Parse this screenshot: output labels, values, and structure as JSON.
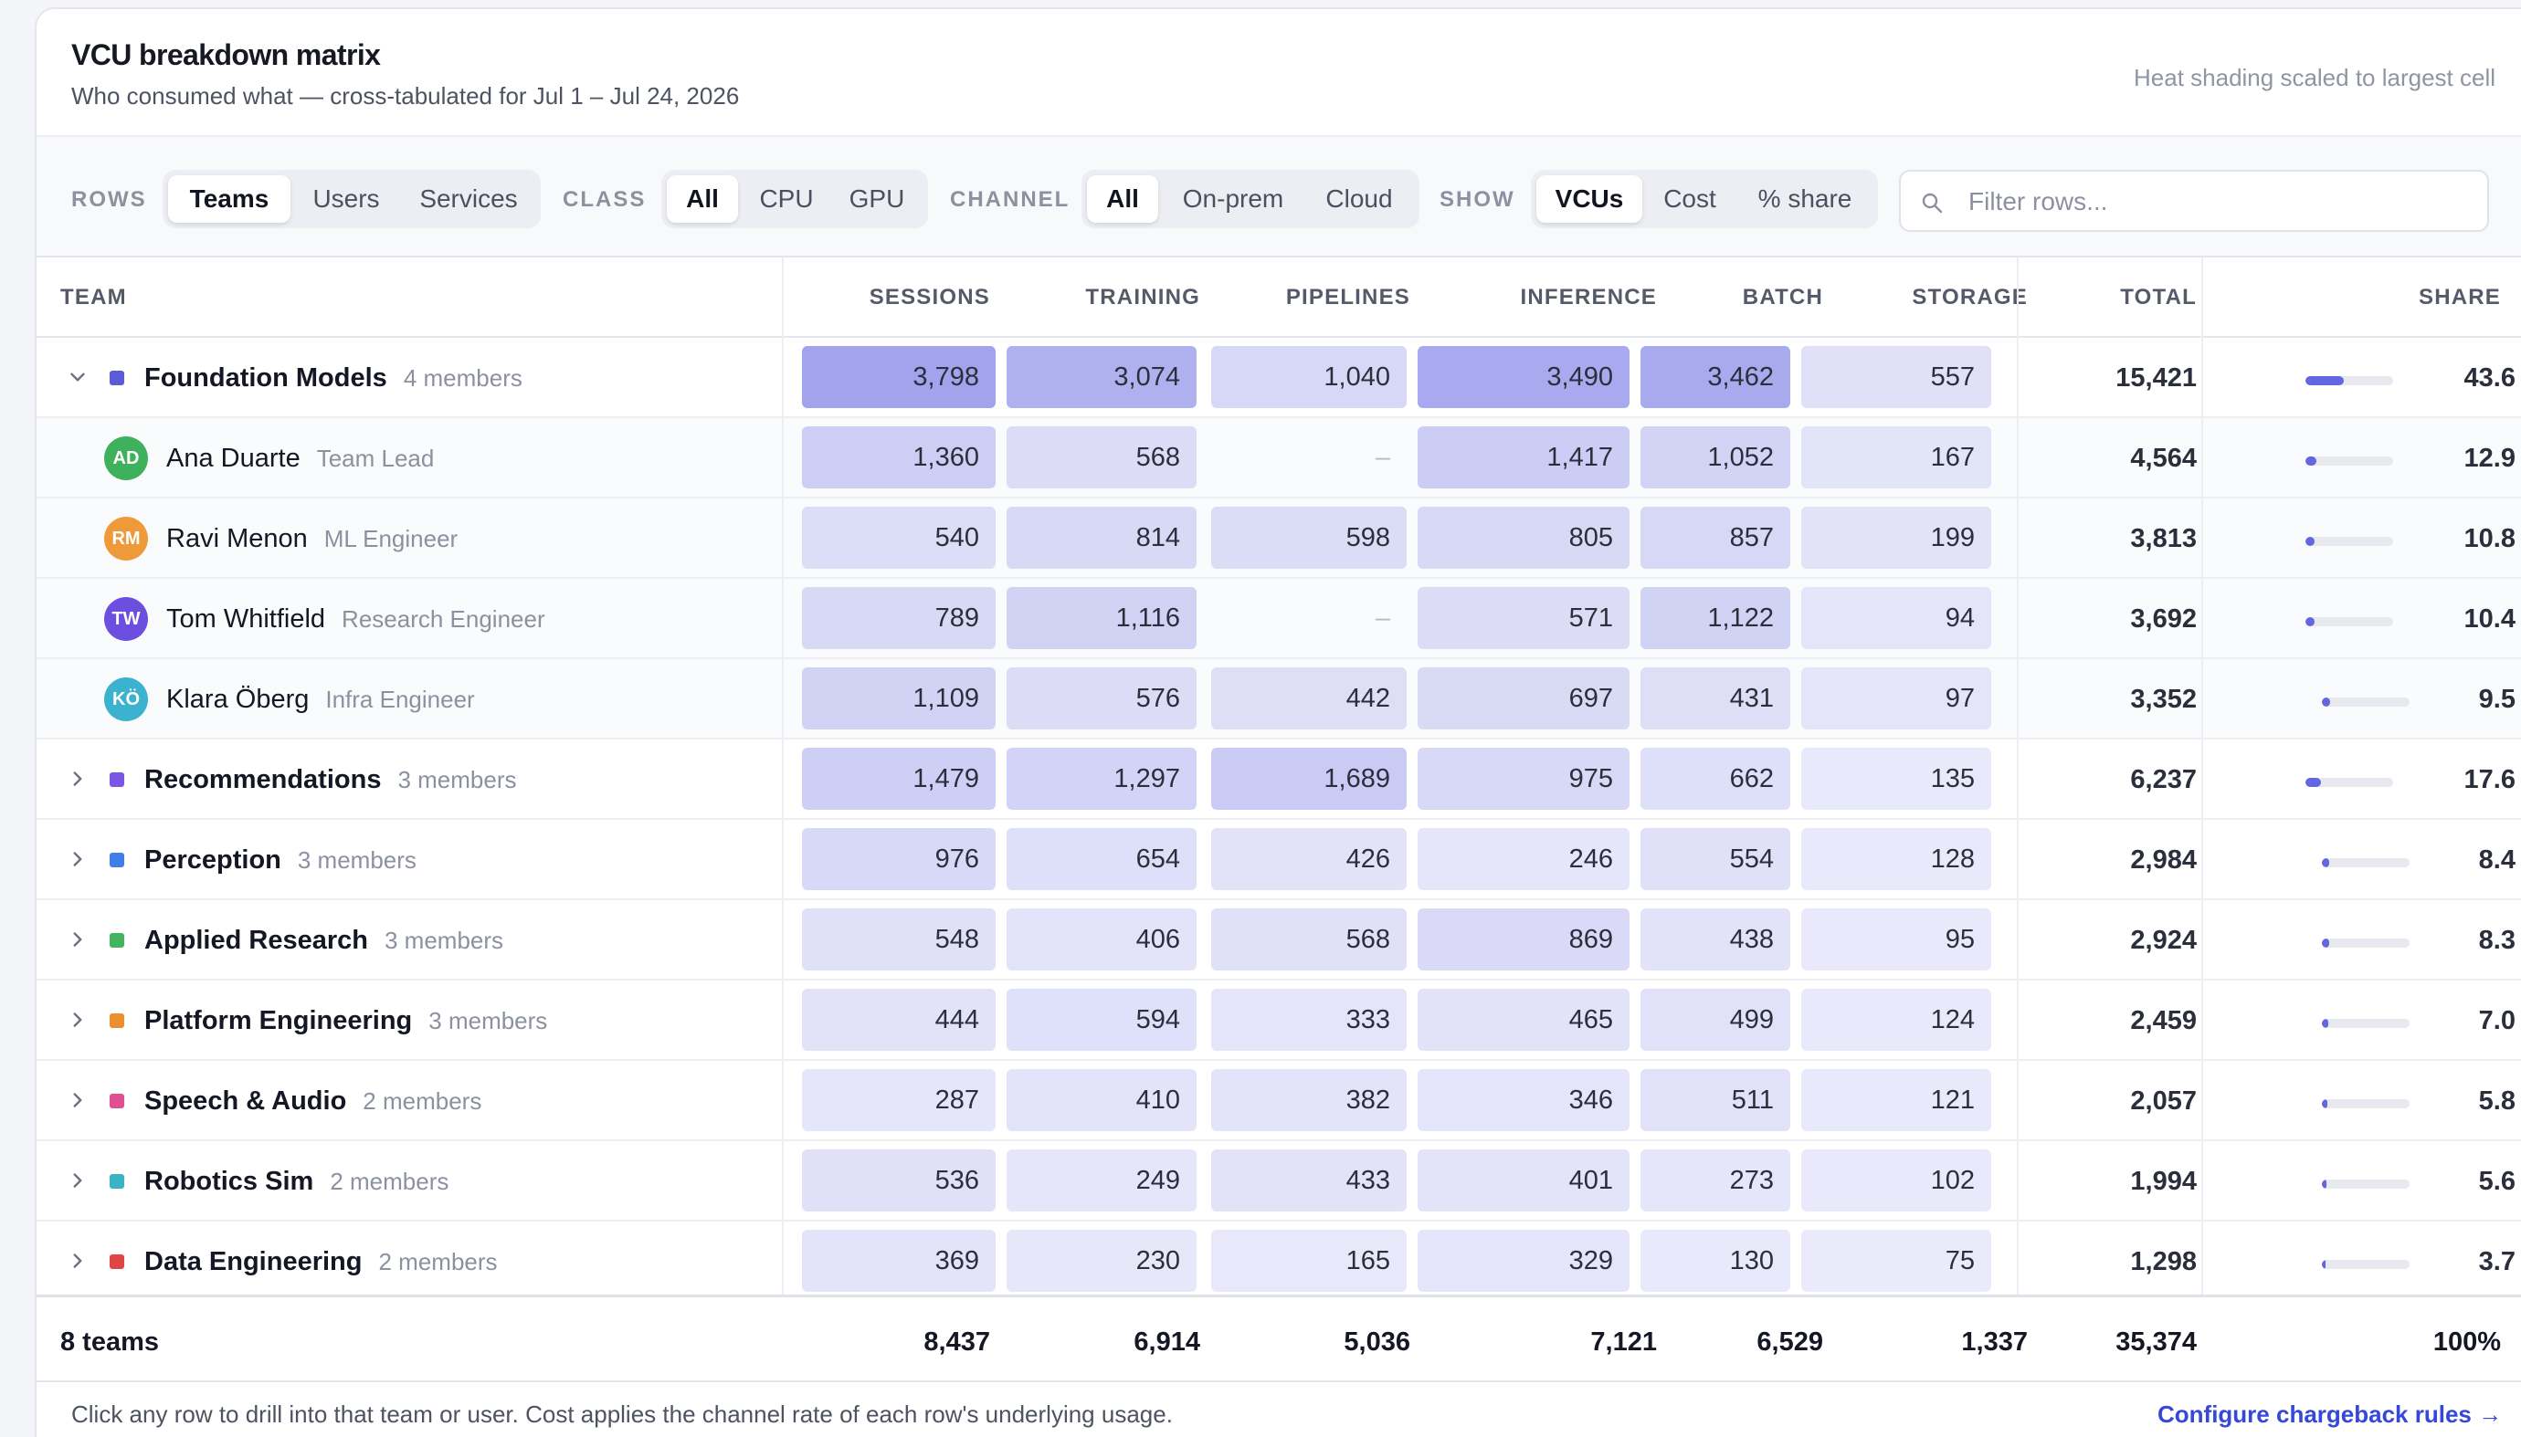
{
  "header": {
    "title": "VCU breakdown matrix",
    "subtitle": "Who consumed what — cross-tabulated for Jul 1 – Jul 24, 2026",
    "note": "Heat shading scaled to largest cell"
  },
  "toolbar": {
    "rows_label": "ROWS",
    "rows_options": [
      "Teams",
      "Users",
      "Services"
    ],
    "class_label": "CLASS",
    "class_options": [
      "All",
      "CPU",
      "GPU"
    ],
    "channel_label": "CHANNEL",
    "channel_options": [
      "All",
      "On-prem",
      "Cloud"
    ],
    "show_label": "SHOW",
    "show_options": [
      "VCUs",
      "Cost",
      "% share"
    ],
    "search_placeholder": "Filter rows..."
  },
  "columns": [
    "TEAM",
    "SESSIONS",
    "TRAINING",
    "PIPELINES",
    "INFERENCE",
    "BATCH",
    "STORAGE",
    "TOTAL",
    "SHARE"
  ],
  "rows": [
    {
      "kind": "group",
      "expanded": true,
      "name": "Foundation Models",
      "meta": "4 members",
      "color": "#5b5bd6",
      "values": [
        "3,798",
        "3,074",
        "1,040",
        "3,490",
        "3,462",
        "557"
      ],
      "total": "15,421",
      "share": "43.6",
      "share_pct": 43.6
    },
    {
      "kind": "user",
      "initials": "AD",
      "avatar_color": "#3fb05c",
      "name": "Ana Duarte",
      "meta": "Team Lead",
      "values": [
        "1,360",
        "568",
        "–",
        "1,417",
        "1,052",
        "167"
      ],
      "total": "4,564",
      "share": "12.9",
      "share_pct": 12.9
    },
    {
      "kind": "user",
      "initials": "RM",
      "avatar_color": "#ee9a3a",
      "name": "Ravi Menon",
      "meta": "ML Engineer",
      "values": [
        "540",
        "814",
        "598",
        "805",
        "857",
        "199"
      ],
      "total": "3,813",
      "share": "10.8",
      "share_pct": 10.8
    },
    {
      "kind": "user",
      "initials": "TW",
      "avatar_color": "#6d4fe0",
      "name": "Tom Whitfield",
      "meta": "Research Engineer",
      "values": [
        "789",
        "1,116",
        "–",
        "571",
        "1,122",
        "94"
      ],
      "total": "3,692",
      "share": "10.4",
      "share_pct": 10.4
    },
    {
      "kind": "user",
      "initials": "KÖ",
      "avatar_color": "#3bb3cf",
      "name": "Klara Öberg",
      "meta": "Infra Engineer",
      "values": [
        "1,109",
        "576",
        "442",
        "697",
        "431",
        "97"
      ],
      "total": "3,352",
      "share": "9.5",
      "share_pct": 9.5
    },
    {
      "kind": "group",
      "expanded": false,
      "name": "Recommendations",
      "meta": "3 members",
      "color": "#7b55e6",
      "values": [
        "1,479",
        "1,297",
        "1,689",
        "975",
        "662",
        "135"
      ],
      "total": "6,237",
      "share": "17.6",
      "share_pct": 17.6
    },
    {
      "kind": "group",
      "expanded": false,
      "name": "Perception",
      "meta": "3 members",
      "color": "#3f7ee8",
      "values": [
        "976",
        "654",
        "426",
        "246",
        "554",
        "128"
      ],
      "total": "2,984",
      "share": "8.4",
      "share_pct": 8.4
    },
    {
      "kind": "group",
      "expanded": false,
      "name": "Applied Research",
      "meta": "3 members",
      "color": "#45b45e",
      "values": [
        "548",
        "406",
        "568",
        "869",
        "438",
        "95"
      ],
      "total": "2,924",
      "share": "8.3",
      "share_pct": 8.3
    },
    {
      "kind": "group",
      "expanded": false,
      "name": "Platform Engineering",
      "meta": "3 members",
      "color": "#ec8f33",
      "values": [
        "444",
        "594",
        "333",
        "465",
        "499",
        "124"
      ],
      "total": "2,459",
      "share": "7.0",
      "share_pct": 7.0
    },
    {
      "kind": "group",
      "expanded": false,
      "name": "Speech & Audio",
      "meta": "2 members",
      "color": "#e04f93",
      "values": [
        "287",
        "410",
        "382",
        "346",
        "511",
        "121"
      ],
      "total": "2,057",
      "share": "5.8",
      "share_pct": 5.8
    },
    {
      "kind": "group",
      "expanded": false,
      "name": "Robotics Sim",
      "meta": "2 members",
      "color": "#3bb3c4",
      "values": [
        "536",
        "249",
        "433",
        "401",
        "273",
        "102"
      ],
      "total": "1,994",
      "share": "5.6",
      "share_pct": 5.6
    },
    {
      "kind": "group",
      "expanded": false,
      "name": "Data Engineering",
      "meta": "2 members",
      "color": "#e04545",
      "values": [
        "369",
        "230",
        "165",
        "329",
        "130",
        "75"
      ],
      "total": "1,298",
      "share": "3.7",
      "share_pct": 3.7
    }
  ],
  "share_unit": "%",
  "footer_row": {
    "label": "8 teams",
    "values": [
      "8,437",
      "6,914",
      "5,036",
      "7,121",
      "6,529",
      "1,337"
    ],
    "total": "35,374",
    "share": "100%"
  },
  "footnote": "Click any row to drill into that team or user. Cost applies the channel rate of each row's underlying usage.",
  "link_label": "Configure chargeback rules →",
  "colors": {
    "accent": "#6366e0",
    "link": "#3548d9",
    "heat": "#6366e0"
  }
}
